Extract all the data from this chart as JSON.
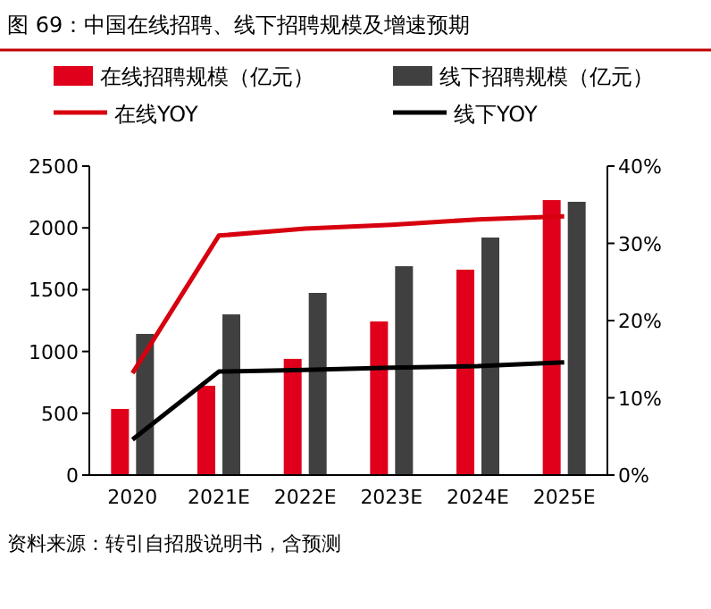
{
  "chart_data": {
    "type": "bar",
    "title": "图 69：中国在线招聘、线下招聘规模及增速预期",
    "categories": [
      "2020",
      "2021E",
      "2022E",
      "2023E",
      "2024E",
      "2025E"
    ],
    "series": [
      {
        "name": "在线招聘规模（亿元）",
        "color": "#e0001b",
        "values": [
          535,
          722,
          940,
          1243,
          1662,
          2225
        ]
      },
      {
        "name": "线下招聘规模（亿元）",
        "color": "#404040",
        "values": [
          1142,
          1300,
          1474,
          1690,
          1922,
          2211
        ]
      },
      {
        "name": "在线YOY",
        "type": "line",
        "axis": "y2",
        "color": "#d7000f",
        "values": [
          13.2,
          31.0,
          31.9,
          32.4,
          33.1,
          33.5
        ]
      },
      {
        "name": "线下YOY",
        "type": "line",
        "axis": "y2",
        "color": "#000000",
        "values": [
          4.6,
          13.4,
          13.6,
          13.9,
          14.1,
          14.6
        ]
      }
    ],
    "ylim": [
      0,
      2500
    ],
    "yticks": [
      0,
      500,
      1000,
      1500,
      2000,
      2500
    ],
    "y2lim": [
      0,
      40
    ],
    "y2ticks": [
      {
        "value": 0,
        "label": "0%"
      },
      {
        "value": 10,
        "label": "10%"
      },
      {
        "value": 20,
        "label": "20%"
      },
      {
        "value": 30,
        "label": "30%"
      },
      {
        "value": 40,
        "label": "40%"
      }
    ],
    "legend": "top",
    "grid": false,
    "annotations": [
      "资料来源：转引自招股说明书，含预测"
    ]
  }
}
